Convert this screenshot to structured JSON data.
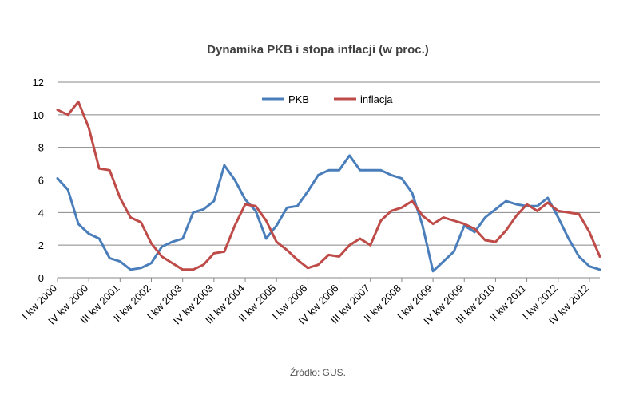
{
  "chart_data": {
    "type": "line",
    "title": "Dynamika PKB i stopa inflacji (w proc.)",
    "source": "Źródło: GUS.",
    "ylim": [
      0,
      12
    ],
    "yticks": [
      "0",
      "2",
      "4",
      "6",
      "8",
      "10",
      "12"
    ],
    "grid": true,
    "legend_position": "top-center",
    "xtick_labels": [
      {
        "index": 0,
        "label": "I kw 2000"
      },
      {
        "index": 3,
        "label": "IV kw 2000"
      },
      {
        "index": 6,
        "label": "III kw 2001"
      },
      {
        "index": 9,
        "label": "II kw 2002"
      },
      {
        "index": 12,
        "label": "I kw 2003"
      },
      {
        "index": 15,
        "label": "IV kw 2003"
      },
      {
        "index": 18,
        "label": "III kw 2004"
      },
      {
        "index": 21,
        "label": "II kw 2005"
      },
      {
        "index": 24,
        "label": "I kw 2006"
      },
      {
        "index": 27,
        "label": "IV kw 2006"
      },
      {
        "index": 30,
        "label": "III kw 2007"
      },
      {
        "index": 33,
        "label": "II kw 2008"
      },
      {
        "index": 36,
        "label": "I kw 2009"
      },
      {
        "index": 39,
        "label": "IV kw 2009"
      },
      {
        "index": 42,
        "label": "III kw 2010"
      },
      {
        "index": 45,
        "label": "II kw 2011"
      },
      {
        "index": 48,
        "label": "I kw 2012"
      },
      {
        "index": 51,
        "label": "IV kw 2012"
      }
    ],
    "series": [
      {
        "name": "PKB",
        "color": "#4a7ebb",
        "values": [
          6.1,
          5.4,
          3.3,
          2.7,
          2.4,
          1.2,
          1.0,
          0.5,
          0.6,
          0.9,
          1.9,
          2.2,
          2.4,
          4.0,
          4.2,
          4.7,
          6.9,
          6.0,
          4.8,
          4.1,
          2.4,
          3.2,
          4.3,
          4.4,
          5.3,
          6.3,
          6.6,
          6.6,
          7.5,
          6.6,
          6.6,
          6.6,
          6.3,
          6.1,
          5.2,
          3.2,
          0.4,
          1.0,
          1.6,
          3.2,
          2.8,
          3.7,
          4.2,
          4.7,
          4.5,
          4.4,
          4.4,
          4.9,
          3.7,
          2.4,
          1.3,
          0.7,
          0.5
        ]
      },
      {
        "name": "inflacja",
        "color": "#be4b48",
        "values": [
          10.3,
          10.0,
          10.8,
          9.2,
          6.7,
          6.6,
          4.9,
          3.7,
          3.4,
          2.1,
          1.3,
          0.9,
          0.5,
          0.5,
          0.8,
          1.5,
          1.6,
          3.2,
          4.5,
          4.4,
          3.5,
          2.2,
          1.7,
          1.1,
          0.6,
          0.8,
          1.4,
          1.3,
          2.0,
          2.4,
          2.0,
          3.5,
          4.1,
          4.3,
          4.7,
          3.8,
          3.3,
          3.7,
          3.5,
          3.3,
          3.0,
          2.3,
          2.2,
          2.9,
          3.8,
          4.5,
          4.1,
          4.6,
          4.1,
          4.0,
          3.9,
          2.8,
          1.3
        ]
      }
    ]
  }
}
